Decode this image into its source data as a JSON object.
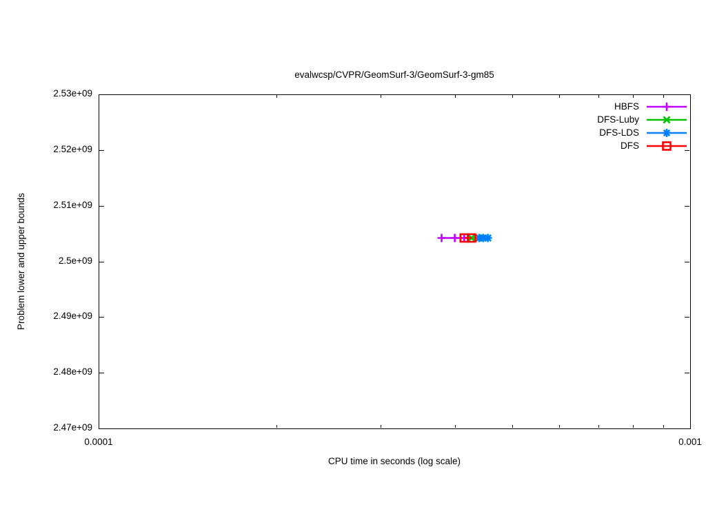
{
  "chart_data": {
    "type": "line",
    "title": "evalwcsp/CVPR/GeomSurf-3/GeomSurf-3-gm85",
    "xlabel": "CPU time in seconds (log scale)",
    "ylabel": "Problem lower and upper bounds",
    "x_scale": "log",
    "xlim": [
      0.0001,
      0.001
    ],
    "ylim": [
      2470000000.0,
      2530000000.0
    ],
    "grid": false,
    "legend_position": "top-right-inside",
    "x_major_ticks": [
      {
        "value": 0.0001,
        "label": "0.0001"
      },
      {
        "value": 0.001,
        "label": "0.001"
      }
    ],
    "x_minor_tick_values": [
      0.0002,
      0.0003,
      0.0004,
      0.0005,
      0.0006,
      0.0007,
      0.0008,
      0.0009
    ],
    "y_ticks": [
      {
        "value": 2530000000.0,
        "label": "2.53e+09"
      },
      {
        "value": 2520000000.0,
        "label": "2.52e+09"
      },
      {
        "value": 2510000000.0,
        "label": "2.51e+09"
      },
      {
        "value": 2500000000.0,
        "label": "2.5e+09"
      },
      {
        "value": 2490000000.0,
        "label": "2.49e+09"
      },
      {
        "value": 2480000000.0,
        "label": "2.48e+09"
      },
      {
        "value": 2470000000.0,
        "label": "2.47e+09"
      }
    ],
    "series": [
      {
        "name": "HBFS",
        "color": "#c000ff",
        "marker": "plus",
        "x": [
          0.00038,
          0.0004,
          0.000415
        ],
        "y": [
          2504200000.0,
          2504200000.0,
          2504200000.0
        ]
      },
      {
        "name": "DFS-Luby",
        "color": "#00c000",
        "marker": "x",
        "x": [
          0.000427,
          0.00044,
          0.000447,
          0.000455
        ],
        "y": [
          2504200000.0,
          2504200000.0,
          2504200000.0,
          2504200000.0
        ]
      },
      {
        "name": "DFS-LDS",
        "color": "#0080ff",
        "marker": "asterisk",
        "x": [
          0.00044,
          0.000447,
          0.000455
        ],
        "y": [
          2504200000.0,
          2504200000.0,
          2504200000.0
        ]
      },
      {
        "name": "DFS",
        "color": "#ff0000",
        "marker": "square-open",
        "x": [
          0.000415,
          0.000427
        ],
        "y": [
          2504200000.0,
          2504200000.0
        ]
      }
    ]
  }
}
